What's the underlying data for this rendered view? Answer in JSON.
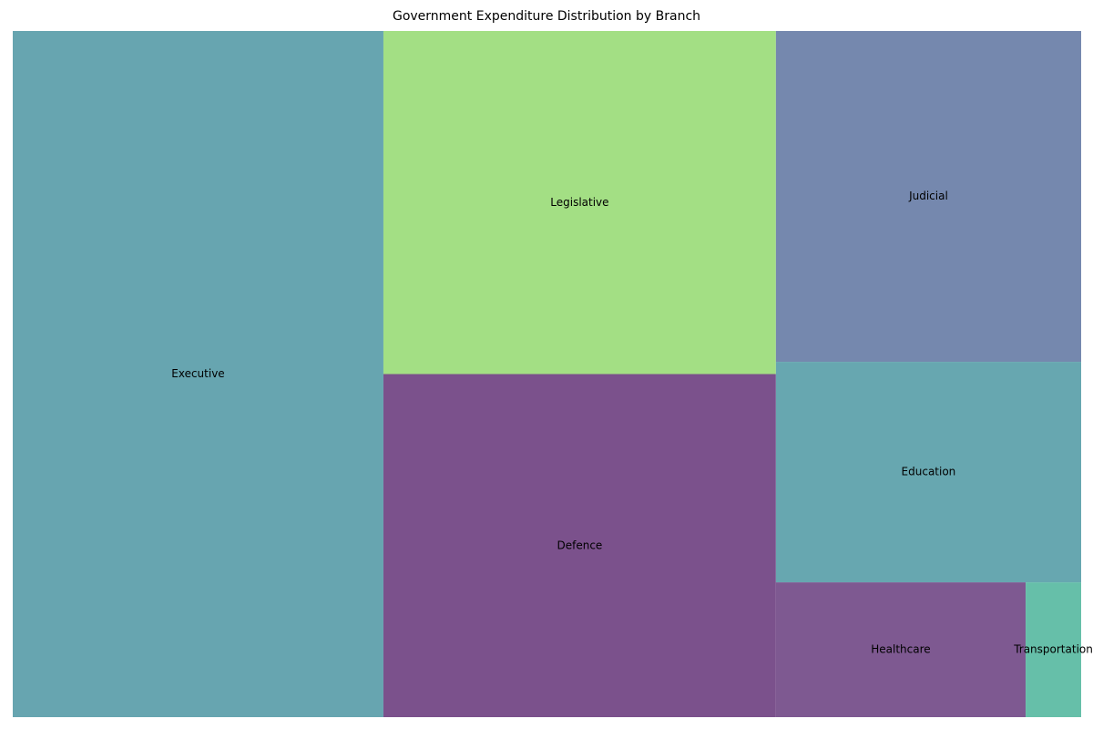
{
  "chart_data": {
    "type": "treemap",
    "title": "Government Expenditure Distribution by Branch",
    "items": [
      {
        "label": "Executive",
        "value": 34,
        "color": "#67A5B0"
      },
      {
        "label": "Legislative",
        "value": 18,
        "color": "#A3DF84"
      },
      {
        "label": "Defence",
        "value": 18,
        "color": "#7B518C"
      },
      {
        "label": "Judicial",
        "value": 13.5,
        "color": "#7588AE"
      },
      {
        "label": "Education",
        "value": 9,
        "color": "#67A7B0"
      },
      {
        "label": "Healthcare",
        "value": 4.5,
        "color": "#7E5991"
      },
      {
        "label": "Transportation",
        "value": 1,
        "color": "#66BFA9"
      }
    ]
  }
}
